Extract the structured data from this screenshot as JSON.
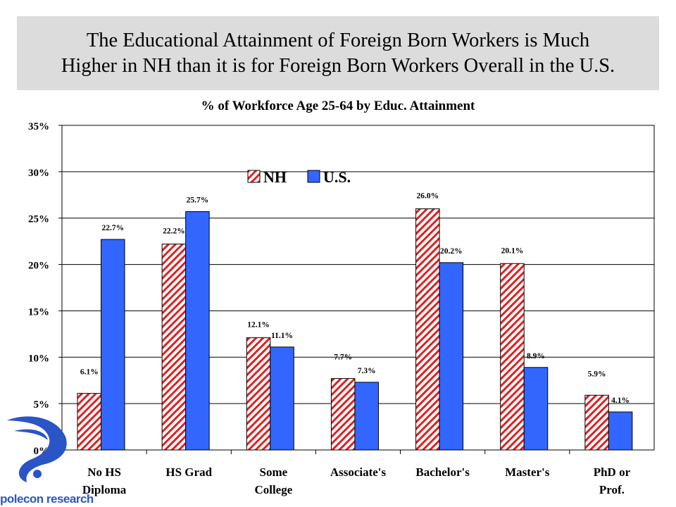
{
  "header": {
    "title_line1": "The Educational Attainment of Foreign Born Workers is Much",
    "title_line2": "Higher in NH than it is for Foreign Born Workers Overall in the U.S."
  },
  "logo": {
    "text": "polecon research"
  },
  "chart_data": {
    "type": "bar",
    "title": "% of Workforce Age 25-64 by Educ. Attainment",
    "categories": [
      [
        "No HS",
        "Diploma"
      ],
      [
        "HS Grad"
      ],
      [
        "Some",
        "College"
      ],
      [
        "Associate's"
      ],
      [
        "Bachelor's"
      ],
      [
        "Master's"
      ],
      [
        "PhD or",
        "Prof."
      ]
    ],
    "series": [
      {
        "name": "NH",
        "color": "#e02020",
        "pattern": "diagonal-stripes",
        "values": [
          6.1,
          22.2,
          12.1,
          7.7,
          26.0,
          20.1,
          5.9
        ]
      },
      {
        "name": "U.S.",
        "color": "#3366ff",
        "pattern": "solid",
        "values": [
          22.7,
          25.7,
          11.1,
          7.3,
          20.2,
          8.9,
          4.1
        ]
      }
    ],
    "ylim": [
      0,
      35
    ],
    "yticks": [
      "0%",
      "5%",
      "10%",
      "15%",
      "20%",
      "25%",
      "30%",
      "35%"
    ],
    "grid": true,
    "legend": "top-center",
    "xlabel": "",
    "ylabel": ""
  }
}
